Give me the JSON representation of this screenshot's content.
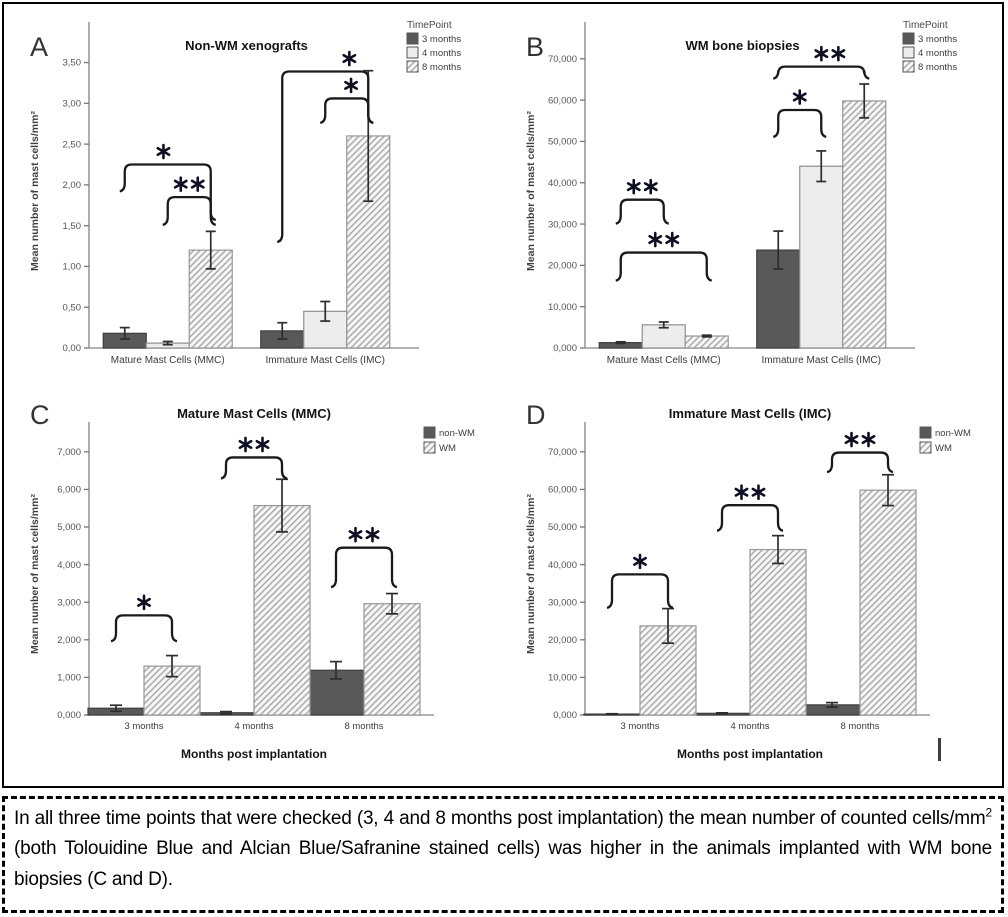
{
  "caption": {
    "part1": "In all three time points that were checked (3, 4 and 8 months post implantation) the mean number of counted cells/mm",
    "sup": "2",
    "part2": " (both Tolouidine Blue and Alcian Blue/Safranine stained cells) was higher in the animals implanted with WM bone biopsies (C and D)."
  },
  "artifacts": {
    "cursor": "|"
  },
  "colors": {
    "bar_dark": "#595959",
    "bar_dark_stroke": "#3f3f3f",
    "bar_light": "#ededed",
    "bar_light_stroke": "#8f8f8f",
    "hatch_line": "#a8a8a8",
    "hatch_bg": "#f8f8f8",
    "hatch_stroke": "#979797",
    "axis": "#9a9a9a",
    "tick_text": "#555555",
    "title_text": "#141414",
    "asterisk": "#0f0f23",
    "bracket": "#1a1a1a",
    "error_bar": "#2d2d2d"
  },
  "chart_data": [
    {
      "type": "bar",
      "panel": "A",
      "title": "Non-WM xenografts",
      "ylabel": "Mean number of mast cells/mm²",
      "xlabel": "",
      "categories": [
        "Mature Mast Cells (MMC)",
        "Immature Mast Cells (IMC)"
      ],
      "legend": {
        "title": "TimePoint",
        "position": "top-right"
      },
      "series": [
        {
          "name": "3 months",
          "style": "dark",
          "values": [
            0.18,
            0.21
          ],
          "errors": [
            0.07,
            0.1
          ]
        },
        {
          "name": "4 months",
          "style": "light",
          "values": [
            0.06,
            0.45
          ],
          "errors": [
            0.02,
            0.12
          ]
        },
        {
          "name": "8 months",
          "style": "hatch",
          "values": [
            1.2,
            2.6
          ],
          "errors": [
            0.23,
            0.8
          ]
        }
      ],
      "ylim": [
        0,
        3.85
      ],
      "yticks": {
        "values": [
          0,
          0.5,
          1,
          1.5,
          2,
          2.5,
          3,
          3.5
        ],
        "labels": [
          "0,00",
          "0,50",
          "1,00",
          "1,50",
          "2,00",
          "2,50",
          "3,00",
          "3,50"
        ]
      },
      "grid": false,
      "significance": [
        {
          "from": [
            0,
            0
          ],
          "to": [
            0,
            2
          ],
          "top": 2.25,
          "drops": [
            0.33,
            0.68
          ],
          "label": "*",
          "labelFrac": 0.45
        },
        {
          "from": [
            0,
            1
          ],
          "to": [
            0,
            2
          ],
          "top": 1.85,
          "drops": [
            0.34,
            0.34
          ],
          "label": "**",
          "labelFrac": 0.5
        },
        {
          "from": [
            1,
            0
          ],
          "to": [
            1,
            2
          ],
          "top": 3.39,
          "drops": [
            2.09,
            0.63
          ],
          "label": "*",
          "labelFrac": 0.78
        },
        {
          "from": [
            1,
            1
          ],
          "to": [
            1,
            2
          ],
          "top": 3.06,
          "drops": [
            0.3,
            0.3
          ],
          "label": "*",
          "labelFrac": 0.6
        }
      ]
    },
    {
      "type": "bar",
      "panel": "B",
      "title": "WM bone biopsies",
      "ylabel": "Mean number of mast cells/mm²",
      "xlabel": "",
      "categories": [
        "Mature Mast Cells (MMC)",
        "Immature Mast Cells (IMC)"
      ],
      "legend": {
        "title": "TimePoint",
        "position": "top-right"
      },
      "series": [
        {
          "name": "3 months",
          "style": "dark",
          "values": [
            1300,
            23700
          ],
          "errors": [
            200,
            4600
          ]
        },
        {
          "name": "4 months",
          "style": "light",
          "values": [
            5600,
            44000
          ],
          "errors": [
            700,
            3700
          ]
        },
        {
          "name": "8 months",
          "style": "hatch",
          "values": [
            2900,
            59800
          ],
          "errors": [
            200,
            4100
          ]
        }
      ],
      "ylim": [
        0,
        76000
      ],
      "yticks": {
        "values": [
          0,
          10000,
          20000,
          30000,
          40000,
          50000,
          60000,
          70000
        ],
        "labels": [
          "0,000",
          "10,000",
          "20,000",
          "30,000",
          "40,000",
          "50,000",
          "60,000",
          "70,000"
        ]
      },
      "grid": false,
      "significance": [
        {
          "from": [
            0,
            0
          ],
          "to": [
            0,
            1
          ],
          "top": 35900,
          "drops": [
            5800,
            5800
          ],
          "label": "**",
          "labelFrac": 0.5
        },
        {
          "from": [
            0,
            0
          ],
          "to": [
            0,
            2
          ],
          "top": 23100,
          "drops": [
            6800,
            6800
          ],
          "label": "**",
          "labelFrac": 0.5
        },
        {
          "from": [
            1,
            0
          ],
          "to": [
            1,
            1
          ],
          "top": 57600,
          "drops": [
            6500,
            6500
          ],
          "label": "*",
          "labelFrac": 0.5
        },
        {
          "from": [
            1,
            0
          ],
          "to": [
            1,
            2
          ],
          "top": 68100,
          "drops": [
            2900,
            2900
          ],
          "label": "**",
          "labelFrac": 0.6
        }
      ]
    },
    {
      "type": "bar",
      "panel": "C",
      "title": "Mature Mast Cells (MMC)",
      "ylabel": "Mean number of mast cells/mm²",
      "xlabel": "Months post implantation",
      "categories": [
        "3 months",
        "4 months",
        "8 months"
      ],
      "legend": {
        "title": "",
        "position": "top-right"
      },
      "series": [
        {
          "name": "non-WM",
          "style": "dark",
          "values": [
            180,
            60,
            1190
          ],
          "errors": [
            80,
            30,
            230
          ]
        },
        {
          "name": "WM",
          "style": "hatch",
          "values": [
            1300,
            5570,
            2960
          ],
          "errors": [
            280,
            700,
            270
          ]
        }
      ],
      "ylim": [
        0,
        7500
      ],
      "yticks": {
        "values": [
          0,
          1000,
          2000,
          3000,
          4000,
          5000,
          6000,
          7000
        ],
        "labels": [
          "0,000",
          "1,000",
          "2,000",
          "3,000",
          "4,000",
          "5,000",
          "6,000",
          "7,000"
        ]
      },
      "grid": false,
      "significance": [
        {
          "from": [
            0,
            0
          ],
          "to": [
            0,
            1
          ],
          "top": 2650,
          "drops": [
            690,
            690
          ],
          "label": "*",
          "labelFrac": 0.5
        },
        {
          "from": [
            1,
            0
          ],
          "to": [
            1,
            1
          ],
          "top": 6850,
          "drops": [
            560,
            560
          ],
          "label": "**",
          "labelFrac": 0.5
        },
        {
          "from": [
            2,
            0
          ],
          "to": [
            2,
            1
          ],
          "top": 4450,
          "drops": [
            1050,
            1050
          ],
          "label": "**",
          "labelFrac": 0.5
        }
      ]
    },
    {
      "type": "bar",
      "panel": "D",
      "title": "Immature Mast Cells (IMC)",
      "ylabel": "Mean number of mast cells/mm²",
      "xlabel": "Months post implantation",
      "categories": [
        "3 months",
        "4 months",
        "8 months"
      ],
      "legend": {
        "title": "",
        "position": "top-right"
      },
      "series": [
        {
          "name": "non-WM",
          "style": "dark",
          "values": [
            250,
            450,
            2700
          ],
          "errors": [
            80,
            120,
            600
          ]
        },
        {
          "name": "WM",
          "style": "hatch",
          "values": [
            23700,
            44000,
            59800
          ],
          "errors": [
            4600,
            3700,
            4100
          ]
        }
      ],
      "ylim": [
        0,
        75000
      ],
      "yticks": {
        "values": [
          0,
          10000,
          20000,
          30000,
          40000,
          50000,
          60000,
          70000
        ],
        "labels": [
          "0,000",
          "10,000",
          "20,000",
          "30,000",
          "40,000",
          "50,000",
          "60,000",
          "70,000"
        ]
      },
      "grid": false,
      "significance": [
        {
          "from": [
            0,
            0
          ],
          "to": [
            0,
            1
          ],
          "top": 37400,
          "drops": [
            8900,
            8900
          ],
          "label": "*",
          "labelFrac": 0.5
        },
        {
          "from": [
            1,
            0
          ],
          "to": [
            1,
            1
          ],
          "top": 55800,
          "drops": [
            6800,
            6800
          ],
          "label": "**",
          "labelFrac": 0.5
        },
        {
          "from": [
            2,
            0
          ],
          "to": [
            2,
            1
          ],
          "top": 69800,
          "drops": [
            5200,
            5200
          ],
          "label": "**",
          "labelFrac": 0.5
        }
      ]
    }
  ]
}
